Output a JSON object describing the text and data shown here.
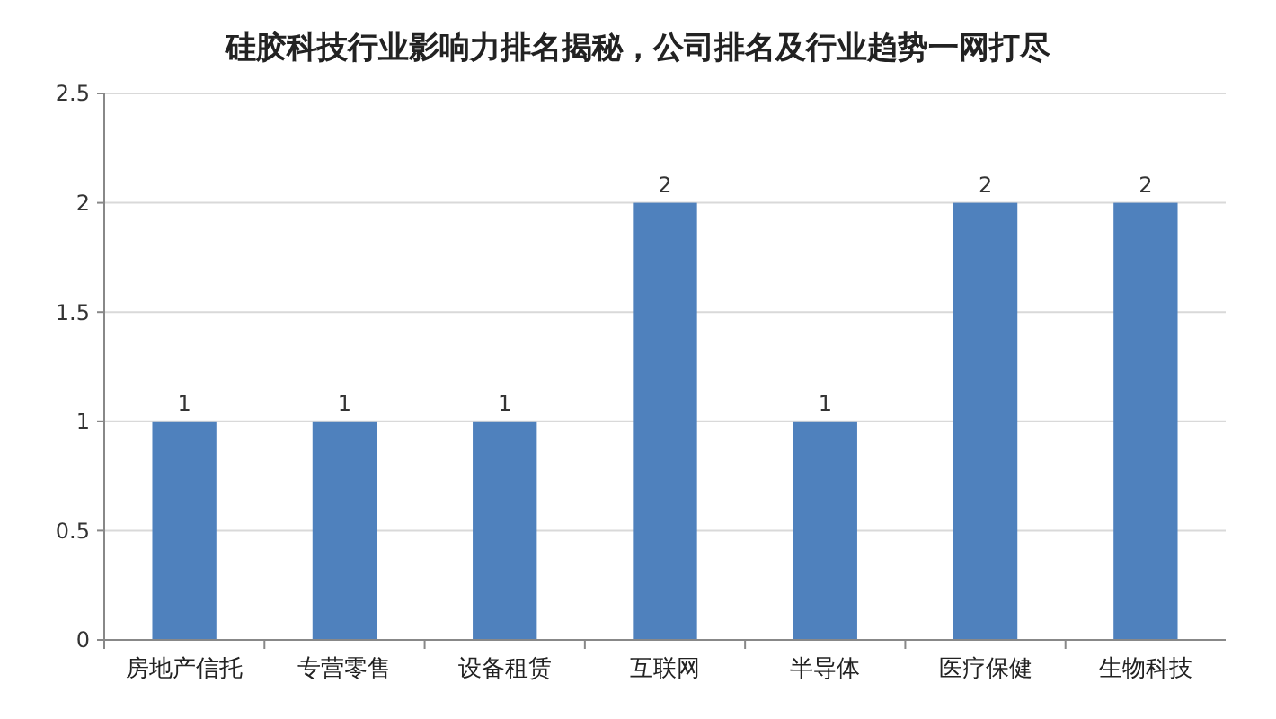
{
  "chart_data": {
    "type": "bar",
    "title": "硅胶科技行业影响力排名揭秘，公司排名及行业趋势一网打尽",
    "categories": [
      "房地产信托",
      "专营零售",
      "设备租赁",
      "互联网",
      "半导体",
      "医疗保健",
      "生物科技"
    ],
    "values": [
      1,
      1,
      1,
      2,
      1,
      2,
      2
    ],
    "color": "#4f81bd",
    "ylim": [
      0,
      2.5
    ],
    "yticks": [
      0,
      0.5,
      1,
      1.5,
      2,
      2.5
    ],
    "grid": "y",
    "data_labels": true
  }
}
